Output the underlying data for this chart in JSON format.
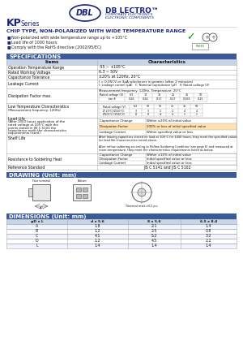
{
  "title_company": "DB LECTRO",
  "title_company_sub1": "CORPORATE ELECTRONICS",
  "title_company_sub2": "ELECTRONIC COMPONENTS",
  "series": "KP",
  "series_sub": "Series",
  "chip_type": "CHIP TYPE, NON-POLARIZED WITH WIDE TEMPERATURE RANGE",
  "features": [
    "Non-polarized with wide temperature range up to +105°C",
    "Load life of 1000 hours",
    "Comply with the RoHS directive (2002/95/EC)"
  ],
  "spec_title": "SPECIFICATIONS",
  "drawing_title": "DRAWING (Unit: mm)",
  "dim_title": "DIMENSIONS (Unit: mm)",
  "dim_headers": [
    "φD x L",
    "d x 5.6",
    "8 x 5.6",
    "6.5 x 8.4"
  ],
  "dim_rows": [
    [
      "A",
      "1.8",
      "2.1",
      "1.4"
    ],
    [
      "B",
      "1.2",
      "2.5",
      "0.8"
    ],
    [
      "C",
      "4.1",
      "5.2",
      "3.2"
    ],
    [
      "D",
      "1.2",
      "4.5",
      "2.2"
    ],
    [
      "L",
      "1.4",
      "1.4",
      "1.4"
    ]
  ],
  "blue_dark": "#1a237e",
  "blue_header_bg": "#3a5a9a",
  "table_bg_header": "#c8d4e8",
  "line_color": "#aaaaaa",
  "bg_color": "#ffffff",
  "orange_highlight": "#f5a623"
}
